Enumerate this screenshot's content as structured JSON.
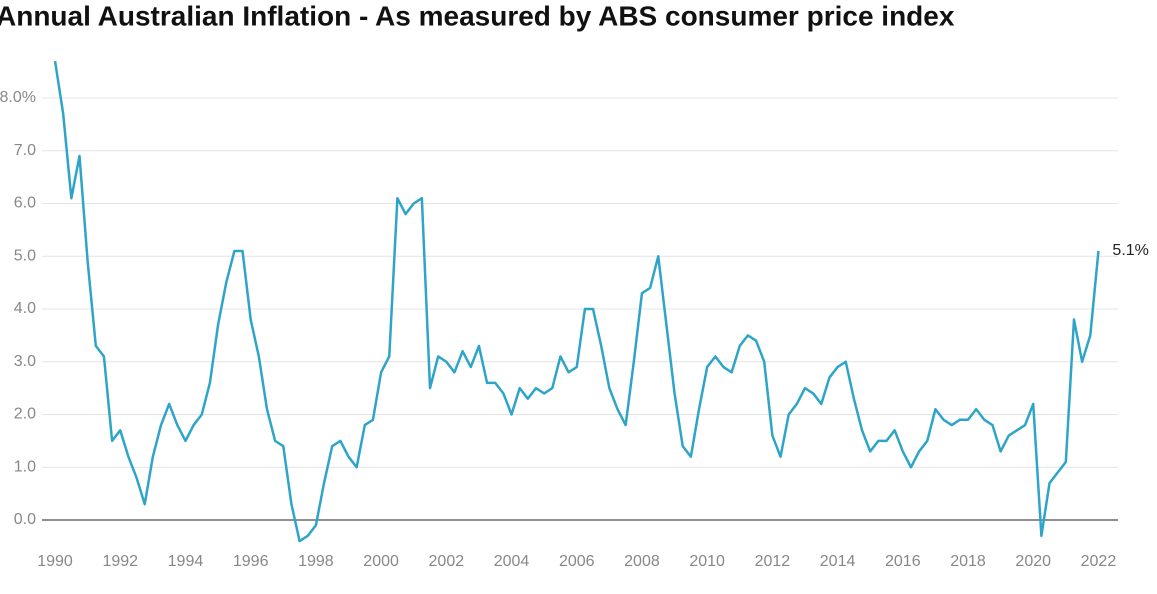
{
  "chart_data": {
    "type": "line",
    "title": "Annual Australian Inflation - As measured by ABS consumer price index",
    "color": "#2ea5c8",
    "x": [
      1990,
      1990.25,
      1990.5,
      1990.75,
      1991,
      1991.25,
      1991.5,
      1991.75,
      1992,
      1992.25,
      1992.5,
      1992.75,
      1993,
      1993.25,
      1993.5,
      1993.75,
      1994,
      1994.25,
      1994.5,
      1994.75,
      1995,
      1995.25,
      1995.5,
      1995.75,
      1996,
      1996.25,
      1996.5,
      1996.75,
      1997,
      1997.25,
      1997.5,
      1997.75,
      1998,
      1998.25,
      1998.5,
      1998.75,
      1999,
      1999.25,
      1999.5,
      1999.75,
      2000,
      2000.25,
      2000.5,
      2000.75,
      2001,
      2001.25,
      2001.5,
      2001.75,
      2002,
      2002.25,
      2002.5,
      2002.75,
      2003,
      2003.25,
      2003.5,
      2003.75,
      2004,
      2004.25,
      2004.5,
      2004.75,
      2005,
      2005.25,
      2005.5,
      2005.75,
      2006,
      2006.25,
      2006.5,
      2006.75,
      2007,
      2007.25,
      2007.5,
      2007.75,
      2008,
      2008.25,
      2008.5,
      2008.75,
      2009,
      2009.25,
      2009.5,
      2009.75,
      2010,
      2010.25,
      2010.5,
      2010.75,
      2011,
      2011.25,
      2011.5,
      2011.75,
      2012,
      2012.25,
      2012.5,
      2012.75,
      2013,
      2013.25,
      2013.5,
      2013.75,
      2014,
      2014.25,
      2014.5,
      2014.75,
      2015,
      2015.25,
      2015.5,
      2015.75,
      2016,
      2016.25,
      2016.5,
      2016.75,
      2017,
      2017.25,
      2017.5,
      2017.75,
      2018,
      2018.25,
      2018.5,
      2018.75,
      2019,
      2019.25,
      2019.5,
      2019.75,
      2020,
      2020.25,
      2020.5,
      2020.75,
      2021,
      2021.25,
      2021.5,
      2021.75,
      2022
    ],
    "values": [
      8.7,
      7.7,
      6.1,
      6.9,
      4.9,
      3.3,
      3.1,
      1.5,
      1.7,
      1.2,
      0.8,
      0.3,
      1.2,
      1.8,
      2.2,
      1.8,
      1.5,
      1.8,
      2.0,
      2.6,
      3.7,
      4.5,
      5.1,
      5.1,
      3.8,
      3.1,
      2.1,
      1.5,
      1.4,
      0.3,
      -0.4,
      -0.3,
      -0.1,
      0.7,
      1.4,
      1.5,
      1.2,
      1.0,
      1.8,
      1.9,
      2.8,
      3.1,
      6.1,
      5.8,
      6.0,
      6.1,
      2.5,
      3.1,
      3.0,
      2.8,
      3.2,
      2.9,
      3.3,
      2.6,
      2.6,
      2.4,
      2.0,
      2.5,
      2.3,
      2.5,
      2.4,
      2.5,
      3.1,
      2.8,
      2.9,
      4.0,
      4.0,
      3.3,
      2.5,
      2.1,
      1.8,
      3.0,
      4.3,
      4.4,
      5.0,
      3.7,
      2.4,
      1.4,
      1.2,
      2.1,
      2.9,
      3.1,
      2.9,
      2.8,
      3.3,
      3.5,
      3.4,
      3.0,
      1.6,
      1.2,
      2.0,
      2.2,
      2.5,
      2.4,
      2.2,
      2.7,
      2.9,
      3.0,
      2.3,
      1.7,
      1.3,
      1.5,
      1.5,
      1.7,
      1.3,
      1.0,
      1.3,
      1.5,
      2.1,
      1.9,
      1.8,
      1.9,
      1.9,
      2.1,
      1.9,
      1.8,
      1.3,
      1.6,
      1.7,
      1.8,
      2.2,
      -0.3,
      0.7,
      0.9,
      1.1,
      3.8,
      3.0,
      3.5,
      5.1
    ],
    "value_labels": [
      null,
      null,
      null,
      null,
      null,
      null,
      null,
      null,
      null,
      null,
      null,
      null,
      null,
      null,
      null,
      null,
      null,
      null,
      null,
      null,
      null,
      null,
      null,
      null,
      null,
      null,
      null,
      null,
      null,
      null,
      null,
      null,
      null,
      null,
      null,
      null,
      null,
      null,
      null,
      null,
      null,
      null,
      null,
      null,
      null,
      null,
      null,
      null,
      null,
      null,
      null,
      null,
      null,
      null,
      null,
      null,
      null,
      null,
      null,
      null,
      null,
      null,
      null,
      null,
      null,
      null,
      null,
      null,
      null,
      null,
      null,
      null,
      null,
      null,
      null,
      null,
      null,
      null,
      null,
      null,
      null,
      null,
      null,
      null,
      null,
      null,
      null,
      null,
      null,
      null,
      null,
      null,
      null,
      null,
      null,
      null,
      null,
      null,
      null,
      null,
      null,
      null,
      null,
      null,
      null,
      null,
      null,
      null,
      null,
      null,
      null,
      null,
      null,
      null,
      null,
      null,
      null,
      null,
      null,
      null,
      null,
      null,
      null,
      null,
      null,
      null,
      null,
      null,
      "5.1%"
    ],
    "xlim": [
      1989.6,
      2022.6
    ],
    "xticks": [
      1990,
      1992,
      1994,
      1996,
      1998,
      2000,
      2002,
      2004,
      2006,
      2008,
      2010,
      2012,
      2014,
      2016,
      2018,
      2020,
      2022
    ],
    "ylim": [
      -0.5,
      8.8
    ],
    "yticks": [
      {
        "value": 0,
        "label": "0.0"
      },
      {
        "value": 1,
        "label": "1.0"
      },
      {
        "value": 2,
        "label": "2.0"
      },
      {
        "value": 3,
        "label": "3.0"
      },
      {
        "value": 4,
        "label": "4.0"
      },
      {
        "value": 5,
        "label": "5.0"
      },
      {
        "value": 6,
        "label": "6.0"
      },
      {
        "value": 7,
        "label": "7.0"
      },
      {
        "value": 8,
        "label": "8.0%"
      }
    ],
    "grid": true
  }
}
